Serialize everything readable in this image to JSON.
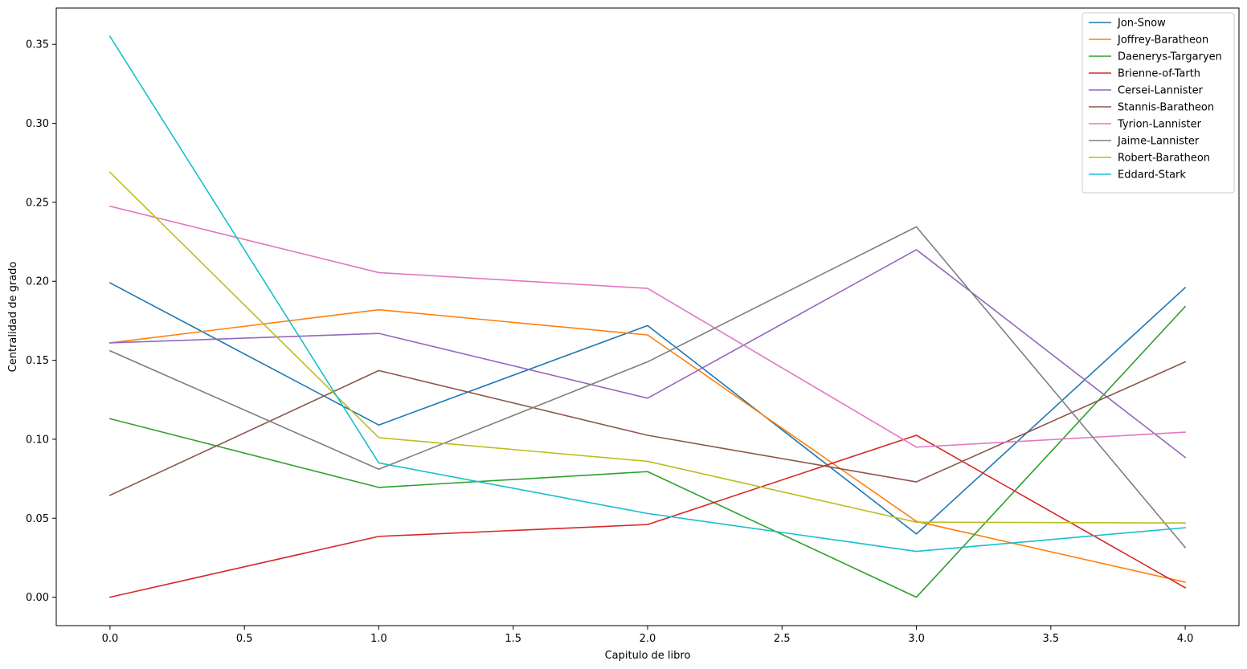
{
  "chart_data": {
    "type": "line",
    "title": "",
    "xlabel": "Capitulo de libro",
    "ylabel": "Centralidad de grado",
    "x": [
      0,
      1,
      2,
      3,
      4
    ],
    "xlim": [
      -0.2,
      4.2
    ],
    "ylim": [
      -0.018,
      0.373
    ],
    "xticks": [
      0.0,
      0.5,
      1.0,
      1.5,
      2.0,
      2.5,
      3.0,
      3.5,
      4.0
    ],
    "xtick_labels": [
      "0.0",
      "0.5",
      "1.0",
      "1.5",
      "2.0",
      "2.5",
      "3.0",
      "3.5",
      "4.0"
    ],
    "yticks": [
      0.0,
      0.05,
      0.1,
      0.15,
      0.2,
      0.25,
      0.3,
      0.35
    ],
    "ytick_labels": [
      "0.00",
      "0.05",
      "0.10",
      "0.15",
      "0.20",
      "0.25",
      "0.30",
      "0.35"
    ],
    "grid": false,
    "legend_position": "top-right",
    "series": [
      {
        "name": "Jon-Snow",
        "color": "#1f77b4",
        "values": [
          0.199,
          0.109,
          0.172,
          0.04,
          0.196
        ]
      },
      {
        "name": "Joffrey-Baratheon",
        "color": "#ff7f0e",
        "values": [
          0.161,
          0.182,
          0.166,
          0.048,
          0.0095
        ]
      },
      {
        "name": "Daenerys-Targaryen",
        "color": "#2ca02c",
        "values": [
          0.113,
          0.0695,
          0.0795,
          0.0,
          0.184
        ]
      },
      {
        "name": "Brienne-of-Tarth",
        "color": "#d62728",
        "values": [
          0.0,
          0.0385,
          0.046,
          0.1025,
          0.006
        ]
      },
      {
        "name": "Cersei-Lannister",
        "color": "#9467bd",
        "values": [
          0.161,
          0.167,
          0.126,
          0.22,
          0.0885
        ]
      },
      {
        "name": "Stannis-Baratheon",
        "color": "#8c564b",
        "values": [
          0.0645,
          0.1435,
          0.1025,
          0.073,
          0.149
        ]
      },
      {
        "name": "Tyrion-Lannister",
        "color": "#e377c2",
        "values": [
          0.2475,
          0.2055,
          0.1955,
          0.095,
          0.1045
        ]
      },
      {
        "name": "Jaime-Lannister",
        "color": "#7f7f7f",
        "values": [
          0.156,
          0.081,
          0.149,
          0.2345,
          0.0315
        ]
      },
      {
        "name": "Robert-Baratheon",
        "color": "#bcbd22",
        "values": [
          0.269,
          0.101,
          0.086,
          0.0475,
          0.047
        ]
      },
      {
        "name": "Eddard-Stark",
        "color": "#17becf",
        "values": [
          0.355,
          0.085,
          0.053,
          0.029,
          0.044
        ]
      }
    ]
  }
}
